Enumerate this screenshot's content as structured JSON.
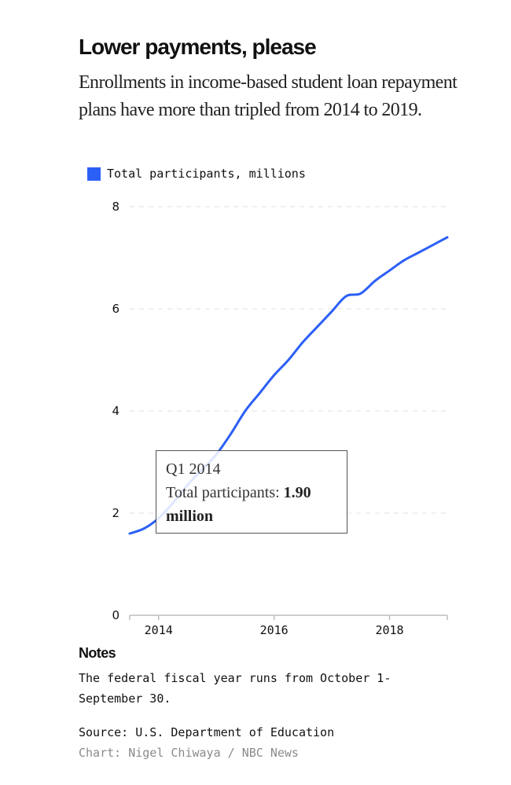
{
  "header": {
    "title": "Lower payments, please",
    "subtitle": "Enrollments in income-based student loan repayment plans have more than tripled from 2014 to 2019."
  },
  "legend": {
    "label": "Total participants, millions",
    "color": "#2c5ff6"
  },
  "tooltip": {
    "period": "Q1 2014",
    "label": "Total participants:",
    "value": "1.90 million"
  },
  "chart_data": {
    "type": "line",
    "title": "Lower payments, please",
    "subtitle": "Enrollments in income-based student loan repayment plans have more than tripled from 2014 to 2019.",
    "xlabel": "",
    "ylabel": "",
    "xlim": [
      2013.5,
      2019.0
    ],
    "ylim": [
      0,
      8
    ],
    "x_ticks": [
      2014,
      2016,
      2018
    ],
    "x_tick_labels": [
      "2014",
      "2016",
      "2018"
    ],
    "y_ticks": [
      0,
      2,
      4,
      6,
      8
    ],
    "y_tick_labels": [
      "0",
      "2",
      "4",
      "6",
      "8"
    ],
    "grid": "horizontal dashed",
    "legend_position": "top-left",
    "series": [
      {
        "name": "Total participants, millions",
        "color": "#2c5ff6",
        "x": [
          2013.5,
          2013.75,
          2014.0,
          2014.25,
          2014.5,
          2014.75,
          2015.0,
          2015.25,
          2015.5,
          2015.75,
          2016.0,
          2016.25,
          2016.5,
          2016.75,
          2017.0,
          2017.25,
          2017.5,
          2017.75,
          2018.0,
          2018.25,
          2018.5,
          2018.75,
          2019.0
        ],
        "values": [
          1.6,
          1.7,
          1.9,
          2.2,
          2.55,
          2.85,
          3.15,
          3.55,
          4.0,
          4.35,
          4.7,
          5.0,
          5.35,
          5.65,
          5.95,
          6.25,
          6.3,
          6.55,
          6.75,
          6.95,
          7.1,
          7.25,
          7.4
        ]
      }
    ],
    "highlight": {
      "x": 2014.0,
      "y": 1.9,
      "label": "Q1 2014"
    }
  },
  "notes": {
    "title": "Notes",
    "text": "The federal fiscal year runs from October 1-September 30."
  },
  "source": "Source: U.S. Department of Education",
  "credit": "Chart: Nigel Chiwaya / NBC News"
}
